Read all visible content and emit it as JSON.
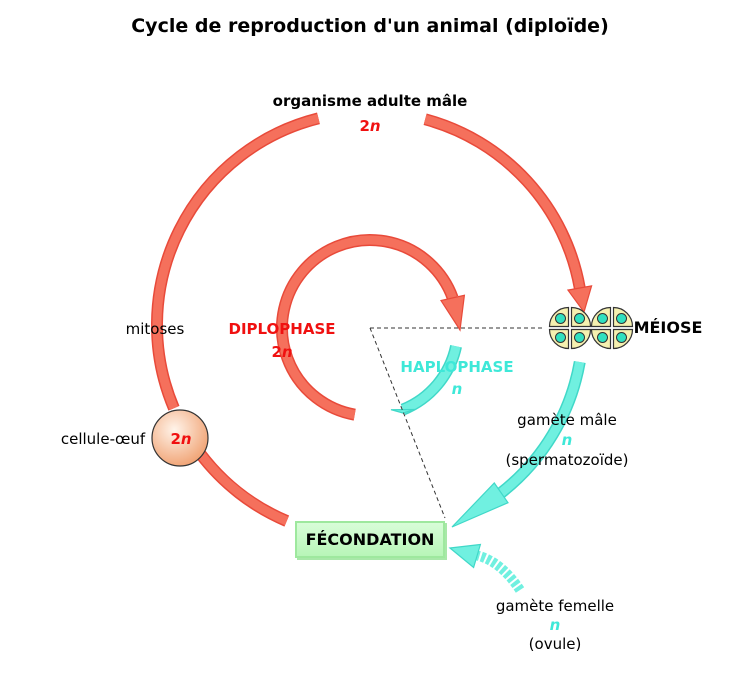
{
  "title": "Cycle de reproduction d'un animal (diploïde)",
  "adult": {
    "label": "organisme adulte mâle",
    "ploidy": "2n"
  },
  "mitoses": "mitoses",
  "diplophase": {
    "label": "DIPLOPHASE",
    "ploidy": "2n"
  },
  "haplophase": {
    "label": "HAPLOPHASE",
    "ploidy": "n"
  },
  "meiose": "MÉIOSE",
  "gamete_male": {
    "label": "gamète mâle",
    "ploidy": "n",
    "name": "(spermatozoïde)"
  },
  "zygote": {
    "label": "cellule-œuf",
    "ploidy": "2n"
  },
  "fecondation": "FÉCONDATION",
  "gamete_femelle": {
    "label": "gamète femelle",
    "ploidy": "n",
    "name": "(ovule)"
  },
  "colors": {
    "diplo": "#f5705c",
    "haplo": "#70f0e0",
    "red_text": "#f01010",
    "cyan_text": "#3ee8d8"
  }
}
